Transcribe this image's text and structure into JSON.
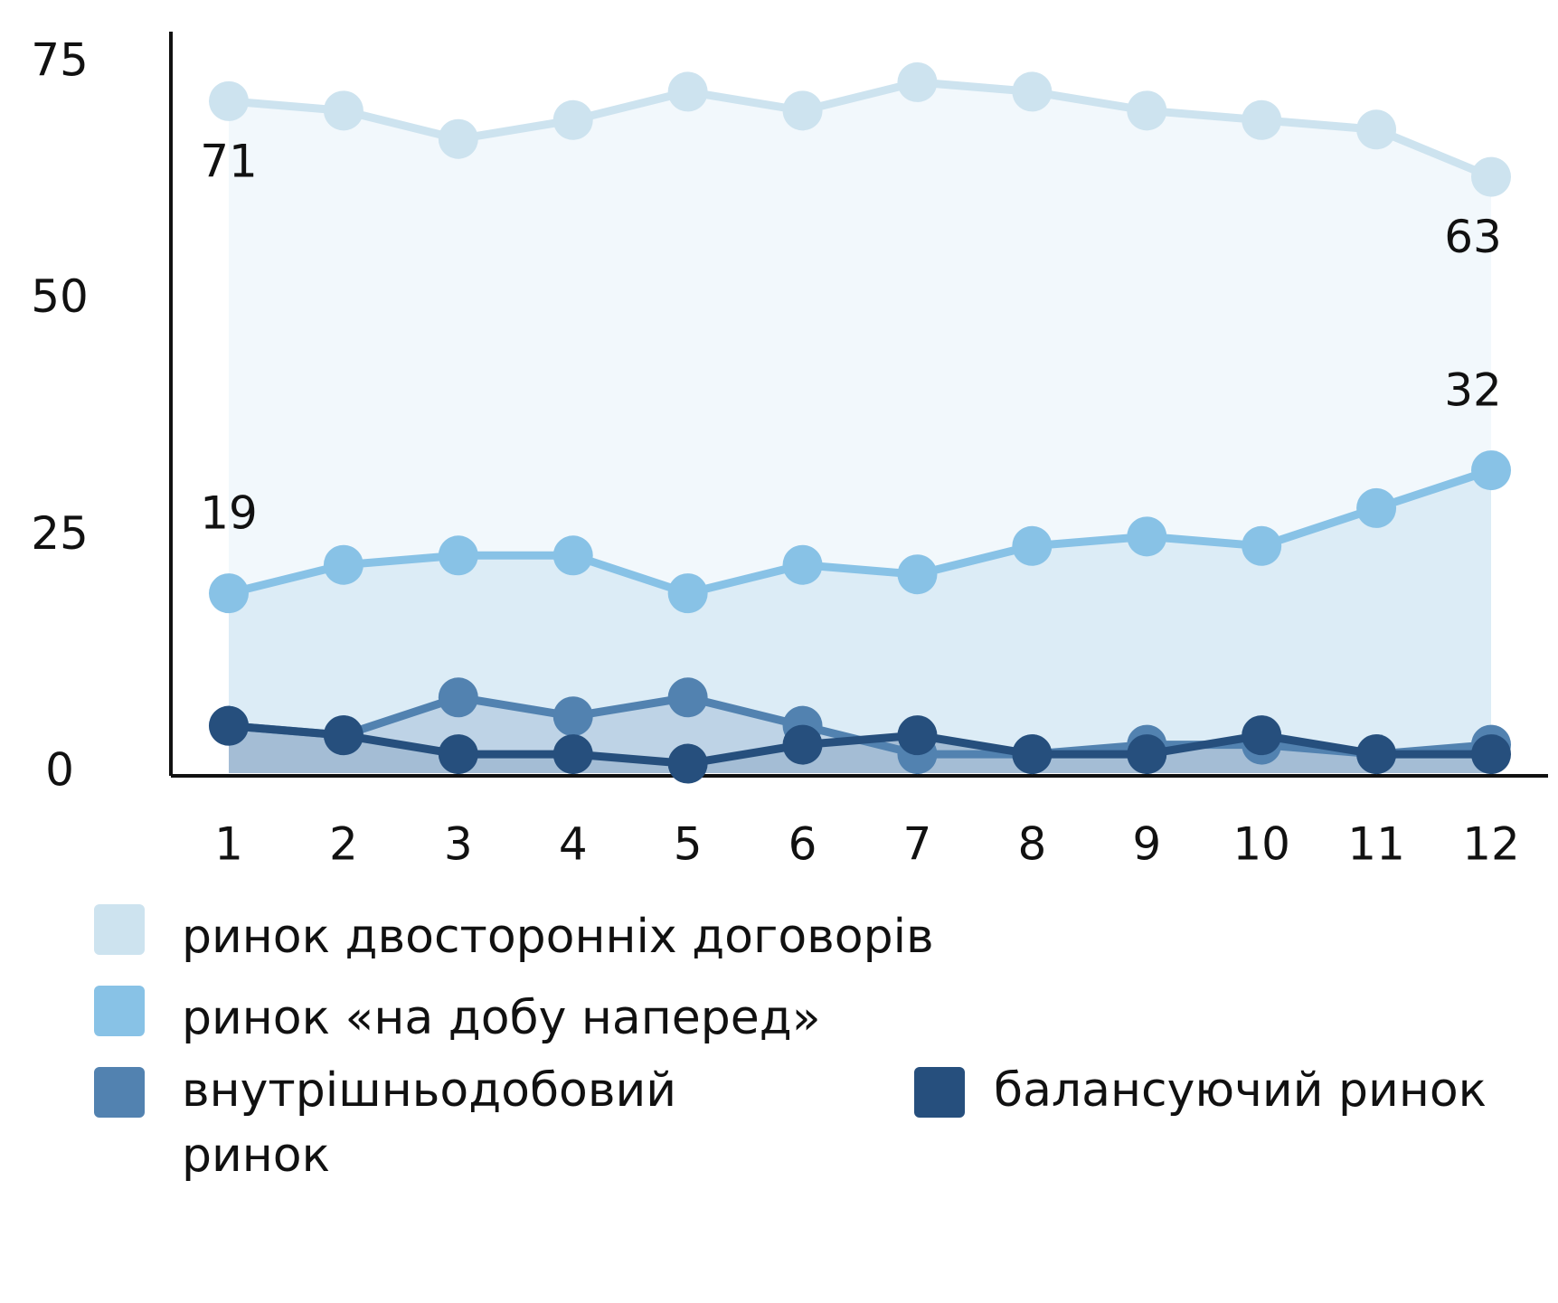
{
  "chart_data": {
    "type": "line",
    "categories": [
      "1",
      "2",
      "3",
      "4",
      "5",
      "6",
      "7",
      "8",
      "9",
      "10",
      "11",
      "12"
    ],
    "series": [
      {
        "name": "ринок двосторонніх договорів",
        "color": "#cde3ef",
        "fill": "#f2f8fc",
        "values": [
          71,
          70,
          67,
          69,
          72,
          70,
          73,
          72,
          70,
          69,
          68,
          63
        ]
      },
      {
        "name": "ринок «на добу наперед»",
        "color": "#88c2e6",
        "fill": "#dcecf6",
        "values": [
          19,
          22,
          23,
          23,
          19,
          22,
          21,
          24,
          25,
          24,
          28,
          32
        ]
      },
      {
        "name": "внутрішньодобовий ринок",
        "color": "#5282b0",
        "fill": "#bed3e6",
        "values": [
          5,
          4,
          8,
          6,
          8,
          5,
          2,
          2,
          3,
          3,
          2,
          3
        ]
      },
      {
        "name": "балансуючий ринок",
        "color": "#264f7d",
        "fill": "#a4bdd5",
        "values": [
          5,
          4,
          2,
          2,
          1,
          3,
          4,
          2,
          2,
          4,
          2,
          2
        ]
      }
    ],
    "ylim": [
      0,
      75
    ],
    "yticks": [
      0,
      25,
      50,
      75
    ],
    "grid": false
  }
}
